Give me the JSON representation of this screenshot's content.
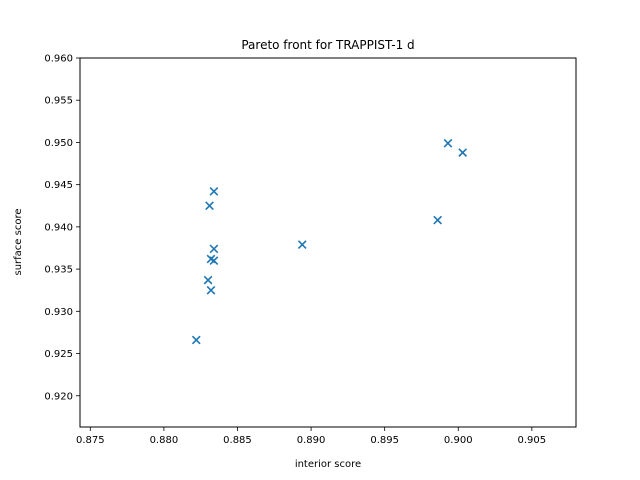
{
  "chart_data": {
    "type": "scatter",
    "title": "Pareto front for TRAPPIST-1 d",
    "xlabel": "interior score",
    "ylabel": "surface score",
    "xlim": [
      0.8743,
      0.908
    ],
    "ylim": [
      0.9163,
      0.96
    ],
    "x_ticks": [
      "0.875",
      "0.880",
      "0.885",
      "0.890",
      "0.895",
      "0.900",
      "0.905"
    ],
    "y_ticks": [
      "0.920",
      "0.925",
      "0.930",
      "0.935",
      "0.940",
      "0.945",
      "0.950",
      "0.955",
      "0.960"
    ],
    "marker": "x",
    "color": "#1f77b4",
    "grid": false,
    "points": [
      {
        "x": 0.8822,
        "y": 0.9266
      },
      {
        "x": 0.883,
        "y": 0.9337
      },
      {
        "x": 0.8832,
        "y": 0.9325
      },
      {
        "x": 0.8832,
        "y": 0.9362
      },
      {
        "x": 0.8834,
        "y": 0.936
      },
      {
        "x": 0.8834,
        "y": 0.9374
      },
      {
        "x": 0.8831,
        "y": 0.9425
      },
      {
        "x": 0.8834,
        "y": 0.9442
      },
      {
        "x": 0.8894,
        "y": 0.9379
      },
      {
        "x": 0.8986,
        "y": 0.9408
      },
      {
        "x": 0.8993,
        "y": 0.9499
      },
      {
        "x": 0.9003,
        "y": 0.9488
      }
    ]
  }
}
